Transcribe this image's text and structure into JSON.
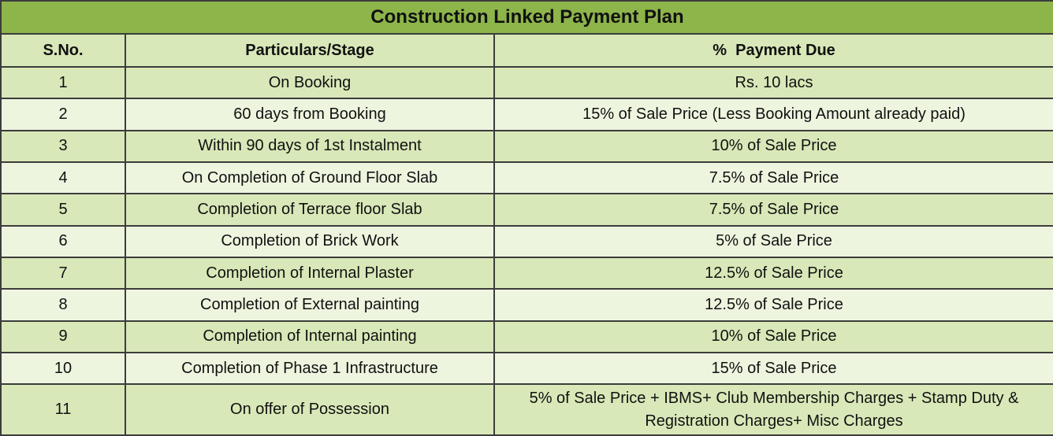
{
  "title": "Construction Linked Payment Plan",
  "headers": {
    "sno": "S.No.",
    "stage": "Particulars/Stage",
    "payment": "%  Payment Due"
  },
  "rows": [
    {
      "sno": "1",
      "stage": "On Booking",
      "payment": "Rs. 10 lacs"
    },
    {
      "sno": "2",
      "stage": "60 days from Booking",
      "payment": "15% of Sale Price (Less Booking Amount already paid)"
    },
    {
      "sno": "3",
      "stage": "Within 90 days of 1st Instalment",
      "payment": "10% of Sale Price"
    },
    {
      "sno": "4",
      "stage": "On Completion of Ground Floor Slab",
      "payment": "7.5% of Sale Price"
    },
    {
      "sno": "5",
      "stage": "Completion of Terrace floor Slab",
      "payment": "7.5% of Sale Price"
    },
    {
      "sno": "6",
      "stage": "Completion of Brick Work",
      "payment": "5% of Sale Price"
    },
    {
      "sno": "7",
      "stage": "Completion of Internal Plaster",
      "payment": "12.5% of Sale Price"
    },
    {
      "sno": "8",
      "stage": "Completion of External painting",
      "payment": "12.5% of Sale Price"
    },
    {
      "sno": "9",
      "stage": "Completion of Internal painting",
      "payment": "10% of Sale Price"
    },
    {
      "sno": "10",
      "stage": "Completion of Phase 1 Infrastructure",
      "payment": "15% of Sale Price"
    },
    {
      "sno": "11",
      "stage": "On offer of Possession",
      "payment": "5% of Sale Price + IBMS+ Club Membership Charges + Stamp Duty & Registration Charges+ Misc Charges"
    }
  ],
  "colors": {
    "title_bg": "#8db54a",
    "row_dark": "#d8e8b8",
    "row_light": "#eef5df",
    "border": "#3c3c3c"
  }
}
